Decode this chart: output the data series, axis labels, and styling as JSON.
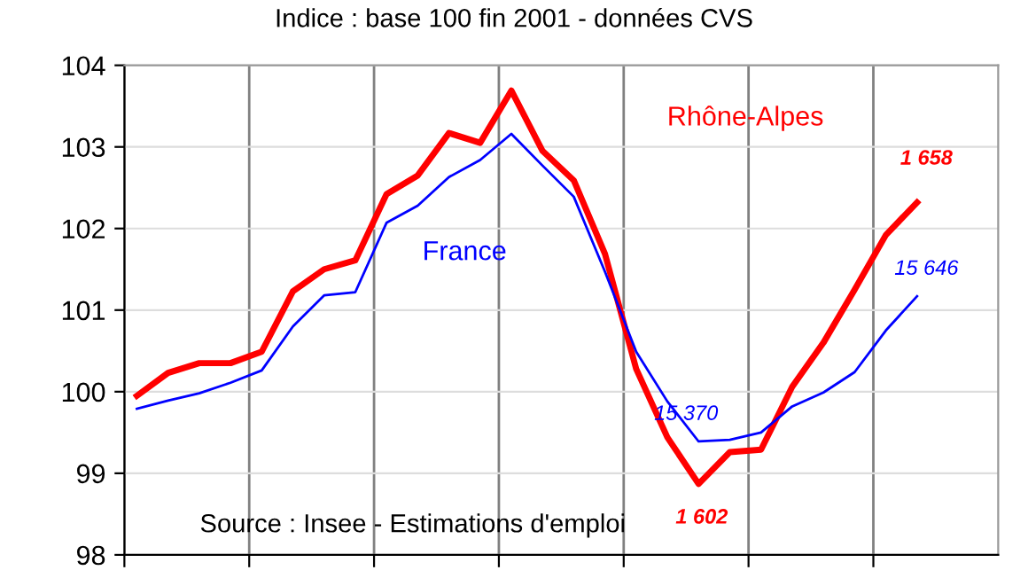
{
  "chart_data": {
    "type": "line",
    "title": "Indice : base 100 fin 2001 - données CVS",
    "categories": [
      null,
      null,
      null,
      null,
      null,
      null,
      null,
      null,
      null,
      null,
      null,
      null,
      null,
      null,
      null,
      null,
      null,
      null,
      null,
      null,
      null,
      null,
      null,
      null,
      null,
      null
    ],
    "series": [
      {
        "name": "Rhône-Alpes",
        "color": "#ff0000",
        "values": [
          99.95,
          100.23,
          100.35,
          100.35,
          100.49,
          101.23,
          101.5,
          101.61,
          102.42,
          102.65,
          103.17,
          103.05,
          103.69,
          102.95,
          102.59,
          101.69,
          100.28,
          99.44,
          98.87,
          99.26,
          99.29,
          100.06,
          100.6,
          101.25,
          101.92,
          102.32
        ]
      },
      {
        "name": "France",
        "color": "#0000ff",
        "values": [
          99.79,
          99.89,
          99.98,
          100.11,
          100.26,
          100.8,
          101.18,
          101.22,
          102.07,
          102.28,
          102.63,
          102.84,
          103.16,
          102.77,
          102.39,
          101.47,
          100.49,
          99.88,
          99.39,
          99.41,
          99.5,
          99.82,
          99.99,
          100.24,
          100.75,
          101.17
        ]
      }
    ],
    "ylim": [
      98,
      104
    ],
    "yticks": [
      98,
      99,
      100,
      101,
      102,
      103,
      104
    ],
    "grid": true,
    "legend": false,
    "marker": "none",
    "line_style": "solid",
    "annotations": [
      "1 602",
      "1 658",
      "15 370",
      "15 646",
      "Source : Insee - Estimations d'emploi"
    ]
  }
}
